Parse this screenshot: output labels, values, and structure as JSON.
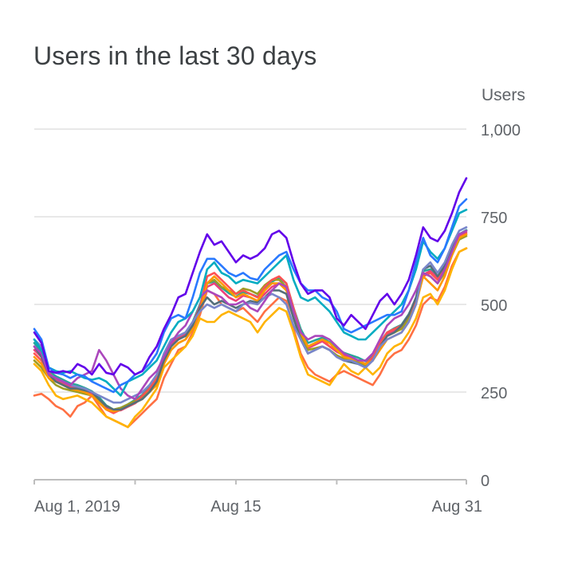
{
  "chart_data": {
    "type": "line",
    "title": "Users in the last 30 days",
    "ylabel": "Users",
    "xlabel": "",
    "ylim": [
      0,
      1000
    ],
    "y_ticks": [
      0,
      250,
      500,
      750,
      1000
    ],
    "y_tick_labels": [
      "0",
      "250",
      "500",
      "750",
      "1,000"
    ],
    "x_tick_labels": [
      "Aug 1, 2019",
      "Aug 15",
      "Aug 31"
    ],
    "x_tick_days": [
      1,
      15,
      31
    ],
    "x_minor_tick_days": [
      1,
      8,
      15,
      22,
      31
    ],
    "grid": true,
    "x": [
      1,
      1.5,
      2,
      2.5,
      3,
      3.5,
      4,
      4.5,
      5,
      5.5,
      6,
      6.5,
      7,
      7.5,
      8,
      8.5,
      9,
      9.5,
      10,
      10.5,
      11,
      11.5,
      12,
      12.5,
      13,
      13.5,
      14,
      14.5,
      15,
      15.5,
      16,
      16.5,
      17,
      17.5,
      18,
      18.5,
      19,
      19.5,
      20,
      20.5,
      21,
      21.5,
      22,
      22.5,
      23,
      23.5,
      24,
      24.5,
      25,
      25.5,
      26,
      26.5,
      27,
      27.5,
      28,
      28.5,
      29,
      29.5,
      30,
      30.5,
      31
    ],
    "series": [
      {
        "color": "#6200ea",
        "values": [
          420,
          390,
          310,
          305,
          310,
          305,
          330,
          320,
          300,
          330,
          305,
          300,
          330,
          320,
          300,
          310,
          350,
          380,
          430,
          470,
          520,
          530,
          590,
          650,
          700,
          670,
          680,
          650,
          620,
          640,
          630,
          640,
          660,
          700,
          710,
          690,
          620,
          560,
          530,
          540,
          540,
          520,
          460,
          440,
          470,
          450,
          430,
          470,
          510,
          530,
          500,
          530,
          570,
          640,
          720,
          690,
          680,
          710,
          760,
          820,
          860
        ]
      },
      {
        "color": "#2979ff",
        "values": [
          430,
          400,
          320,
          305,
          300,
          290,
          300,
          295,
          280,
          270,
          260,
          250,
          270,
          280,
          300,
          310,
          330,
          360,
          420,
          460,
          470,
          460,
          520,
          590,
          630,
          630,
          610,
          590,
          580,
          590,
          575,
          570,
          600,
          620,
          640,
          650,
          600,
          560,
          540,
          540,
          520,
          510,
          480,
          430,
          420,
          430,
          440,
          450,
          460,
          470,
          470,
          480,
          540,
          620,
          690,
          640,
          620,
          660,
          720,
          780,
          800
        ]
      },
      {
        "color": "#00acc1",
        "values": [
          400,
          370,
          320,
          310,
          305,
          310,
          300,
          290,
          285,
          290,
          280,
          260,
          240,
          280,
          290,
          300,
          320,
          340,
          380,
          420,
          450,
          460,
          480,
          520,
          600,
          620,
          590,
          580,
          560,
          570,
          565,
          560,
          580,
          600,
          620,
          640,
          570,
          520,
          510,
          520,
          500,
          480,
          450,
          420,
          410,
          400,
          400,
          420,
          440,
          460,
          480,
          500,
          540,
          600,
          680,
          650,
          630,
          660,
          710,
          760,
          770
        ]
      },
      {
        "color": "#ab47bc",
        "values": [
          380,
          360,
          300,
          290,
          280,
          270,
          290,
          300,
          310,
          370,
          340,
          300,
          260,
          240,
          230,
          260,
          290,
          310,
          350,
          390,
          420,
          440,
          480,
          520,
          540,
          530,
          520,
          500,
          500,
          510,
          490,
          480,
          510,
          540,
          560,
          550,
          480,
          420,
          400,
          410,
          410,
          400,
          380,
          360,
          350,
          340,
          340,
          360,
          400,
          440,
          460,
          470,
          500,
          540,
          590,
          580,
          560,
          600,
          650,
          700,
          710
        ]
      },
      {
        "color": "#7986cb",
        "values": [
          400,
          380,
          300,
          290,
          280,
          270,
          265,
          260,
          250,
          240,
          230,
          220,
          220,
          230,
          240,
          250,
          270,
          300,
          360,
          400,
          410,
          420,
          450,
          480,
          500,
          490,
          500,
          490,
          480,
          500,
          505,
          500,
          520,
          530,
          520,
          500,
          440,
          400,
          360,
          370,
          380,
          370,
          350,
          340,
          340,
          330,
          320,
          340,
          380,
          400,
          410,
          420,
          450,
          500,
          600,
          620,
          590,
          620,
          670,
          710,
          720
        ]
      },
      {
        "color": "#546e7a",
        "values": [
          380,
          350,
          300,
          280,
          270,
          260,
          260,
          255,
          250,
          230,
          210,
          200,
          200,
          210,
          220,
          230,
          250,
          280,
          340,
          380,
          400,
          410,
          440,
          490,
          520,
          500,
          510,
          500,
          490,
          500,
          510,
          505,
          520,
          540,
          540,
          530,
          460,
          400,
          360,
          370,
          380,
          370,
          350,
          340,
          335,
          330,
          320,
          340,
          380,
          410,
          420,
          440,
          470,
          520,
          600,
          610,
          580,
          610,
          660,
          700,
          710
        ]
      },
      {
        "color": "#ff9800",
        "values": [
          350,
          330,
          290,
          280,
          270,
          260,
          255,
          250,
          240,
          220,
          200,
          195,
          200,
          210,
          220,
          230,
          250,
          270,
          330,
          370,
          390,
          400,
          430,
          480,
          560,
          580,
          560,
          540,
          520,
          530,
          520,
          510,
          540,
          560,
          560,
          540,
          480,
          420,
          380,
          390,
          400,
          390,
          370,
          350,
          345,
          340,
          330,
          340,
          370,
          400,
          410,
          420,
          450,
          500,
          580,
          560,
          540,
          580,
          640,
          690,
          700
        ]
      },
      {
        "color": "#ffb300",
        "values": [
          330,
          310,
          270,
          240,
          230,
          235,
          240,
          230,
          220,
          200,
          180,
          170,
          160,
          150,
          180,
          200,
          230,
          260,
          320,
          340,
          360,
          380,
          410,
          460,
          450,
          450,
          470,
          480,
          470,
          460,
          450,
          420,
          450,
          470,
          490,
          480,
          420,
          350,
          300,
          290,
          280,
          270,
          300,
          330,
          310,
          300,
          320,
          300,
          320,
          360,
          380,
          390,
          420,
          460,
          520,
          530,
          500,
          540,
          600,
          650,
          660
        ]
      },
      {
        "color": "#ff7043",
        "values": [
          240,
          245,
          230,
          210,
          200,
          180,
          210,
          220,
          240,
          210,
          180,
          170,
          160,
          150,
          170,
          190,
          210,
          230,
          290,
          330,
          370,
          380,
          420,
          470,
          540,
          530,
          500,
          490,
          480,
          490,
          470,
          450,
          480,
          500,
          520,
          510,
          430,
          360,
          320,
          300,
          290,
          280,
          300,
          310,
          300,
          290,
          280,
          270,
          300,
          340,
          360,
          370,
          400,
          440,
          500,
          520,
          510,
          550,
          610,
          650,
          660
        ]
      },
      {
        "color": "#ff5252",
        "values": [
          360,
          340,
          300,
          280,
          270,
          260,
          260,
          250,
          240,
          220,
          200,
          190,
          200,
          210,
          220,
          240,
          260,
          290,
          340,
          380,
          400,
          410,
          440,
          490,
          580,
          590,
          570,
          550,
          530,
          540,
          530,
          520,
          550,
          570,
          580,
          560,
          490,
          420,
          380,
          390,
          400,
          380,
          370,
          360,
          350,
          340,
          330,
          350,
          390,
          420,
          430,
          440,
          470,
          510,
          580,
          590,
          570,
          600,
          650,
          690,
          700
        ]
      },
      {
        "color": "#9e9d24",
        "values": [
          340,
          320,
          290,
          270,
          260,
          255,
          250,
          245,
          240,
          225,
          210,
          200,
          205,
          215,
          225,
          235,
          255,
          285,
          330,
          370,
          390,
          400,
          430,
          480,
          560,
          570,
          550,
          540,
          530,
          545,
          540,
          530,
          555,
          570,
          570,
          550,
          470,
          410,
          370,
          375,
          380,
          370,
          355,
          345,
          340,
          335,
          325,
          340,
          380,
          410,
          420,
          430,
          460,
          505,
          590,
          580,
          560,
          590,
          640,
          685,
          695
        ]
      },
      {
        "color": "#ec407a",
        "values": [
          370,
          350,
          305,
          285,
          275,
          265,
          262,
          255,
          245,
          228,
          205,
          195,
          198,
          208,
          218,
          235,
          258,
          288,
          345,
          385,
          405,
          415,
          445,
          495,
          550,
          560,
          540,
          520,
          510,
          525,
          520,
          510,
          530,
          550,
          560,
          545,
          470,
          410,
          375,
          385,
          395,
          380,
          365,
          355,
          345,
          335,
          325,
          345,
          385,
          415,
          425,
          435,
          465,
          505,
          585,
          595,
          575,
          605,
          655,
          695,
          705
        ]
      },
      {
        "color": "#26a69a",
        "values": [
          390,
          365,
          310,
          295,
          285,
          275,
          270,
          262,
          252,
          235,
          212,
          200,
          205,
          215,
          228,
          242,
          265,
          295,
          350,
          390,
          410,
          420,
          450,
          500,
          560,
          565,
          548,
          532,
          522,
          535,
          530,
          522,
          545,
          565,
          575,
          560,
          490,
          430,
          390,
          398,
          405,
          392,
          375,
          362,
          355,
          348,
          338,
          355,
          392,
          420,
          432,
          442,
          472,
          515,
          595,
          600,
          578,
          608,
          658,
          700,
          712
        ]
      }
    ]
  }
}
